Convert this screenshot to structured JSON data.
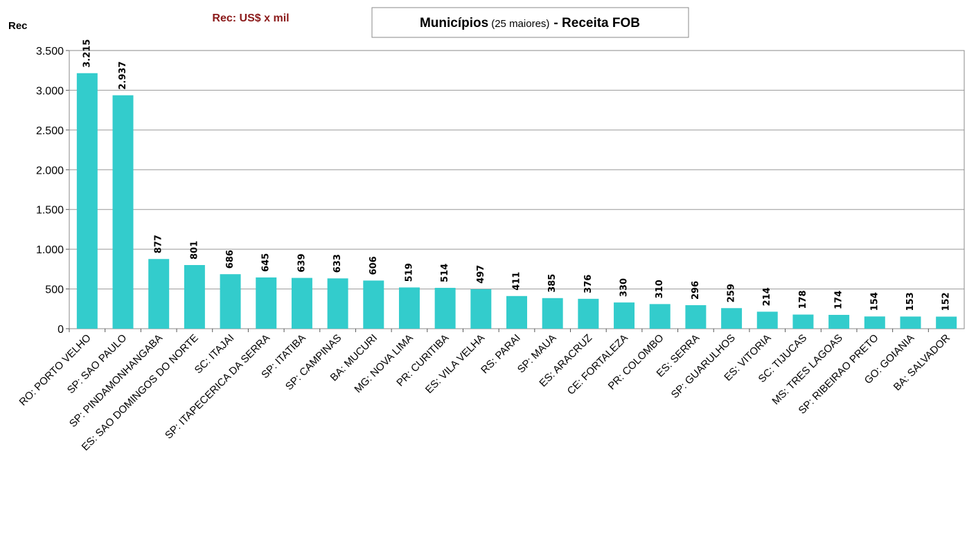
{
  "chart_data": {
    "type": "bar",
    "title": "Municípios",
    "title_note": "(25 maiores)",
    "title_suffix": "- Receita FOB",
    "subtitle": "Rec: US$ x mil",
    "y_label": "Rec",
    "categories": [
      "RO: PORTO VELHO",
      "SP: SAO PAULO",
      "SP: PINDAMONHANGABA",
      "ES: SAO DOMINGOS DO NORTE",
      "SC: ITAJAI",
      "SP: ITAPECERICA DA SERRA",
      "SP: ITATIBA",
      "SP: CAMPINAS",
      "BA: MUCURI",
      "MG: NOVA LIMA",
      "PR: CURITIBA",
      "ES: VILA VELHA",
      "RS: PARAI",
      "SP: MAUA",
      "ES: ARACRUZ",
      "CE: FORTALEZA",
      "PR: COLOMBO",
      "ES: SERRA",
      "SP: GUARULHOS",
      "ES: VITORIA",
      "SC: TIJUCAS",
      "MS: TRES LAGOAS",
      "SP: RIBEIRAO PRETO",
      "GO: GOIANIA",
      "BA: SALVADOR"
    ],
    "values": [
      3215,
      2937,
      877,
      801,
      686,
      645,
      639,
      633,
      606,
      519,
      514,
      497,
      411,
      385,
      376,
      330,
      310,
      296,
      259,
      214,
      178,
      174,
      154,
      153,
      152
    ],
    "value_labels": [
      "3.215",
      "2.937",
      "877",
      "801",
      "686",
      "645",
      "639",
      "633",
      "606",
      "519",
      "514",
      "497",
      "411",
      "385",
      "376",
      "330",
      "310",
      "296",
      "259",
      "214",
      "178",
      "174",
      "154",
      "153",
      "152"
    ],
    "color": "#33cccc",
    "ylim": [
      0,
      3500
    ],
    "yticks": [
      0,
      500,
      {
        "value": 1000,
        "label": "1.000"
      },
      {
        "value": 1500,
        "label": "1.500"
      },
      {
        "value": 2000,
        "label": "2.000"
      },
      {
        "value": 2500,
        "label": "2.500"
      },
      {
        "value": 3000,
        "label": "3.000"
      },
      {
        "value": 3500,
        "label": "3.500"
      }
    ],
    "grid": true
  }
}
